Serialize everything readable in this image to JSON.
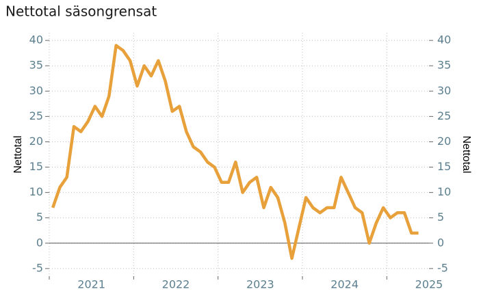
{
  "chart_data": {
    "type": "line",
    "title": "Nettotal säsongrensat",
    "y_label": "Nettotal",
    "y2_label": "Nettotal",
    "x": [
      2021.042,
      2021.125,
      2021.208,
      2021.292,
      2021.375,
      2021.458,
      2021.542,
      2021.625,
      2021.708,
      2021.792,
      2021.875,
      2021.958,
      2022.042,
      2022.125,
      2022.208,
      2022.292,
      2022.375,
      2022.458,
      2022.542,
      2022.625,
      2022.708,
      2022.792,
      2022.875,
      2022.958,
      2023.042,
      2023.125,
      2023.208,
      2023.292,
      2023.375,
      2023.458,
      2023.542,
      2023.625,
      2023.708,
      2023.792,
      2023.875,
      2023.958,
      2024.042,
      2024.125,
      2024.208,
      2024.292,
      2024.375,
      2024.458,
      2024.542,
      2024.625,
      2024.708,
      2024.792,
      2024.875,
      2024.958,
      2025.042,
      2025.125,
      2025.208,
      2025.292,
      2025.375
    ],
    "series": [
      {
        "name": "Nettotal",
        "color": "#e8a03a",
        "values": [
          7,
          11,
          13,
          23,
          22,
          24,
          27,
          25,
          29,
          39,
          38,
          36,
          31,
          35,
          33,
          36,
          32,
          26,
          27,
          22,
          19,
          18,
          16,
          15,
          12,
          12,
          16,
          10,
          12,
          13,
          7,
          11,
          9,
          4,
          -3,
          3,
          9,
          7,
          6,
          7,
          7,
          13,
          10,
          7,
          6,
          0,
          4,
          7,
          5,
          6,
          6,
          2,
          2
        ]
      }
    ],
    "xlim": [
      2021,
      2025.5
    ],
    "xticks": [
      2021,
      2022,
      2023,
      2024,
      2025
    ],
    "ylim": [
      -6.5,
      41.5
    ],
    "yticks": [
      -5,
      0,
      5,
      10,
      15,
      20,
      25,
      30,
      35,
      40
    ],
    "y2lim": [
      -6.5,
      41.5
    ],
    "y2ticks": [
      -5,
      0,
      5,
      10,
      15,
      20,
      25,
      30,
      35,
      40
    ],
    "grid": true,
    "zero_line": true
  }
}
